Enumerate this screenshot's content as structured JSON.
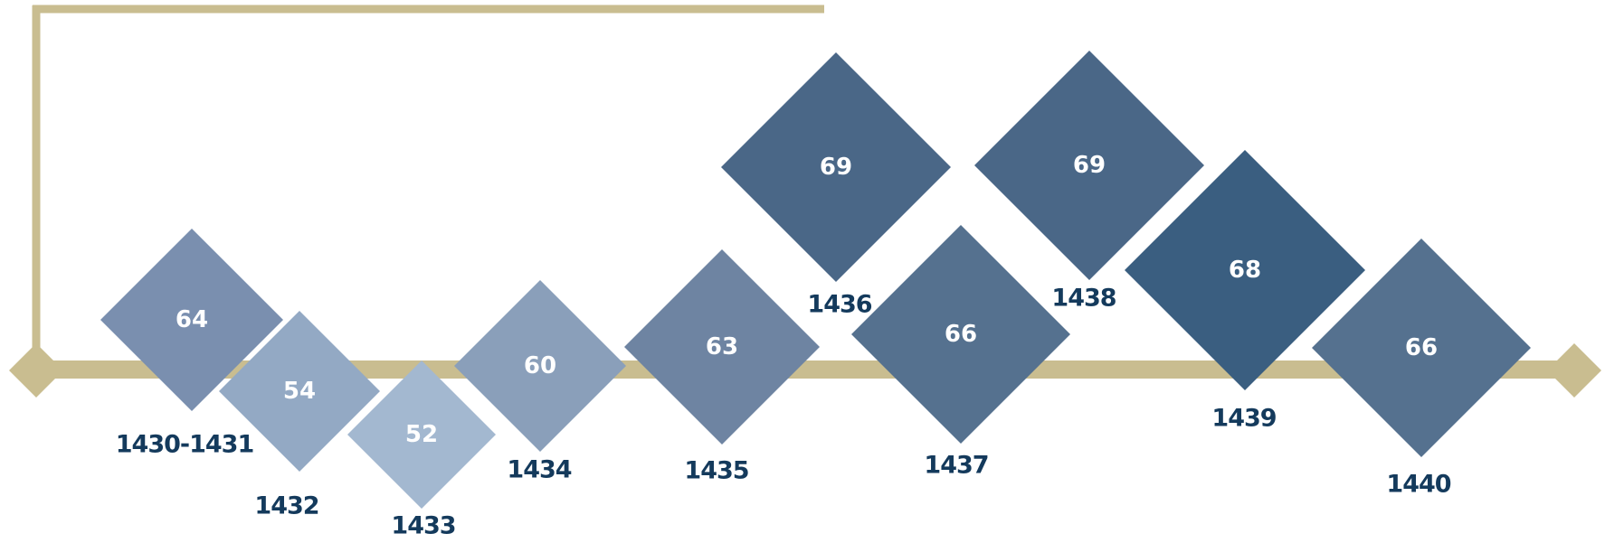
{
  "colors": {
    "frame": "#c9bd90",
    "label": "#143a5c",
    "value_text": "#ffffff"
  },
  "chart_data": {
    "type": "timeline",
    "items": [
      {
        "period": "1430-1431",
        "value": 64,
        "color": "#7a8faf"
      },
      {
        "period": "1432",
        "value": 54,
        "color": "#93a9c4"
      },
      {
        "period": "1433",
        "value": 52,
        "color": "#a3b8d0"
      },
      {
        "period": "1434",
        "value": 60,
        "color": "#8a9fba"
      },
      {
        "period": "1435",
        "value": 63,
        "color": "#6e84a2"
      },
      {
        "period": "1436",
        "value": 69,
        "color": "#4a6787"
      },
      {
        "period": "1437",
        "value": 66,
        "color": "#55718f"
      },
      {
        "period": "1438",
        "value": 69,
        "color": "#4a6787"
      },
      {
        "period": "1439",
        "value": 68,
        "color": "#3a5e80"
      },
      {
        "period": "1440",
        "value": 66,
        "color": "#55718f"
      }
    ]
  }
}
